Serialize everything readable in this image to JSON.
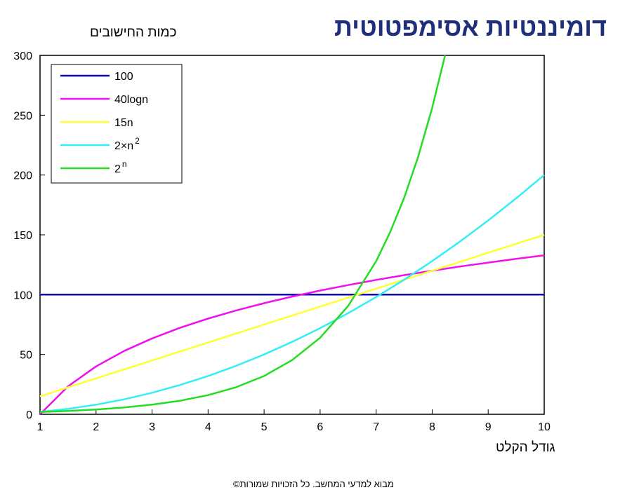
{
  "slide": {
    "title": "דומיננטיות אסימפטוטית",
    "footer": "מבוא למדעי המחשב. כל הזכויות שמורות©"
  },
  "chart_data": {
    "type": "line",
    "xlabel": "גודל הקלט",
    "ylabel": "כמות החישובים",
    "xlim": [
      1,
      10
    ],
    "ylim": [
      0,
      300
    ],
    "xticks": [
      1,
      2,
      3,
      4,
      5,
      6,
      7,
      8,
      9,
      10
    ],
    "yticks": [
      0,
      50,
      100,
      150,
      200,
      250,
      300
    ],
    "grid": false,
    "legend_position": "top-left",
    "series": [
      {
        "name": "100",
        "legend_base": "100",
        "legend_sup": "",
        "color": "#0a0ab4",
        "x": [
          1,
          10
        ],
        "y": [
          100,
          100
        ]
      },
      {
        "name": "40logn",
        "legend_base": "40logn",
        "legend_sup": "",
        "color": "#ee10ee",
        "x": [
          1,
          1.5,
          2,
          2.5,
          3,
          3.5,
          4,
          4.5,
          5,
          5.5,
          6,
          6.5,
          7,
          7.5,
          8,
          8.5,
          9,
          9.5,
          10
        ],
        "y": [
          0,
          23.4,
          40,
          52.9,
          63.4,
          72.3,
          80,
          86.8,
          92.9,
          98.4,
          103.4,
          108,
          112.3,
          116.3,
          120,
          123.5,
          126.8,
          129.9,
          132.9
        ]
      },
      {
        "name": "15n",
        "legend_base": "15n",
        "legend_sup": "",
        "color": "#ffff33",
        "x": [
          1,
          10
        ],
        "y": [
          15,
          150
        ]
      },
      {
        "name": "2×n2",
        "legend_base": "2×n",
        "legend_sup": "2",
        "color": "#33eef5",
        "x": [
          1,
          1.5,
          2,
          2.5,
          3,
          3.5,
          4,
          4.5,
          5,
          5.5,
          6,
          6.5,
          7,
          7.5,
          8,
          8.5,
          9,
          9.5,
          10
        ],
        "y": [
          2,
          4.5,
          8,
          12.5,
          18,
          24.5,
          32,
          40.5,
          50,
          60.5,
          72,
          84.5,
          98,
          112.5,
          128,
          144.5,
          162,
          180.5,
          200
        ]
      },
      {
        "name": "2n",
        "legend_base": "2",
        "legend_sup": "n",
        "color": "#22dd22",
        "x": [
          1,
          1.5,
          2,
          2.5,
          3,
          3.5,
          4,
          4.5,
          5,
          5.5,
          6,
          6.5,
          7,
          7.25,
          7.5,
          7.75,
          8,
          8.23
        ],
        "y": [
          2,
          2.8,
          4,
          5.7,
          8,
          11.3,
          16,
          22.6,
          32,
          45.3,
          64,
          90.5,
          128,
          152.2,
          181,
          215.3,
          256,
          300
        ]
      }
    ]
  }
}
